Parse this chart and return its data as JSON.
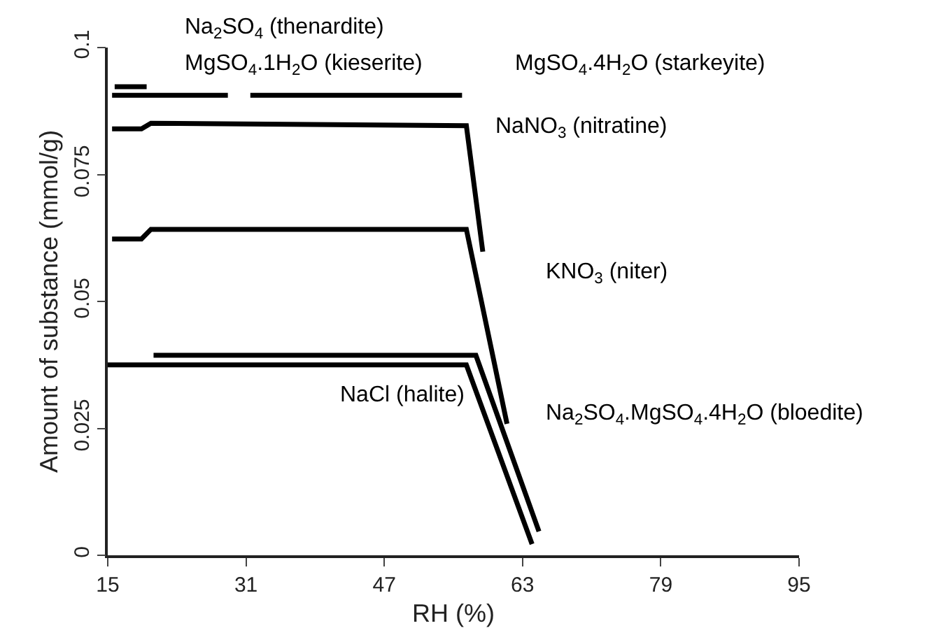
{
  "chart_data": {
    "type": "line",
    "xlabel": "RH (%)",
    "ylabel": "Amount of substance (mmol/g)",
    "xlim": [
      15,
      95
    ],
    "ylim": [
      0,
      0.1
    ],
    "xticks": [
      15,
      31,
      47,
      63,
      79,
      95
    ],
    "yticks": [
      0,
      0.025,
      0.05,
      0.075,
      0.1
    ],
    "grid": false,
    "legend": false,
    "marker": "none",
    "line_style": "solid",
    "series": [
      {
        "name": "Na$_{2}$SO$_{4}$ (thenardite)",
        "color": "#000000",
        "x": [
          15.8,
          19.5
        ],
        "values": [
          0.0923,
          0.0923
        ]
      },
      {
        "name": "MgSO$_{4}$.1H$_{2}$O (kieserite)",
        "color": "#000000",
        "x": [
          15.5,
          28.9
        ],
        "values": [
          0.0906,
          0.0906
        ]
      },
      {
        "name": "MgSO$_{4}$.4H$_{2}$O (starkeyite)",
        "color": "#000000",
        "x": [
          31.5,
          56
        ],
        "values": [
          0.0906,
          0.0906
        ]
      },
      {
        "name": "NaNO$_{3}$ (nitratine)",
        "color": "#000000",
        "x": [
          15.5,
          18.9,
          20,
          56.5,
          58.4
        ],
        "values": [
          0.084,
          0.084,
          0.0851,
          0.0846,
          0.0598
        ]
      },
      {
        "name": "KNO$_{3}$ (niter)",
        "color": "#000000",
        "x": [
          15.5,
          18.9,
          20,
          56.5,
          61.2
        ],
        "values": [
          0.0623,
          0.0623,
          0.0642,
          0.0642,
          0.0259
        ]
      },
      {
        "name": "Na$_{2}$SO$_{4}$.MgSO$_{4}$.4H$_{2}$O (bloedite)",
        "color": "#000000",
        "x": [
          20.3,
          57.6,
          64.9
        ],
        "values": [
          0.0394,
          0.0394,
          0.0047
        ]
      },
      {
        "name": "NaCl (halite)",
        "color": "#000000",
        "x": [
          15,
          56.5,
          64.1
        ],
        "values": [
          0.0375,
          0.0375,
          0.0022
        ]
      }
    ]
  }
}
